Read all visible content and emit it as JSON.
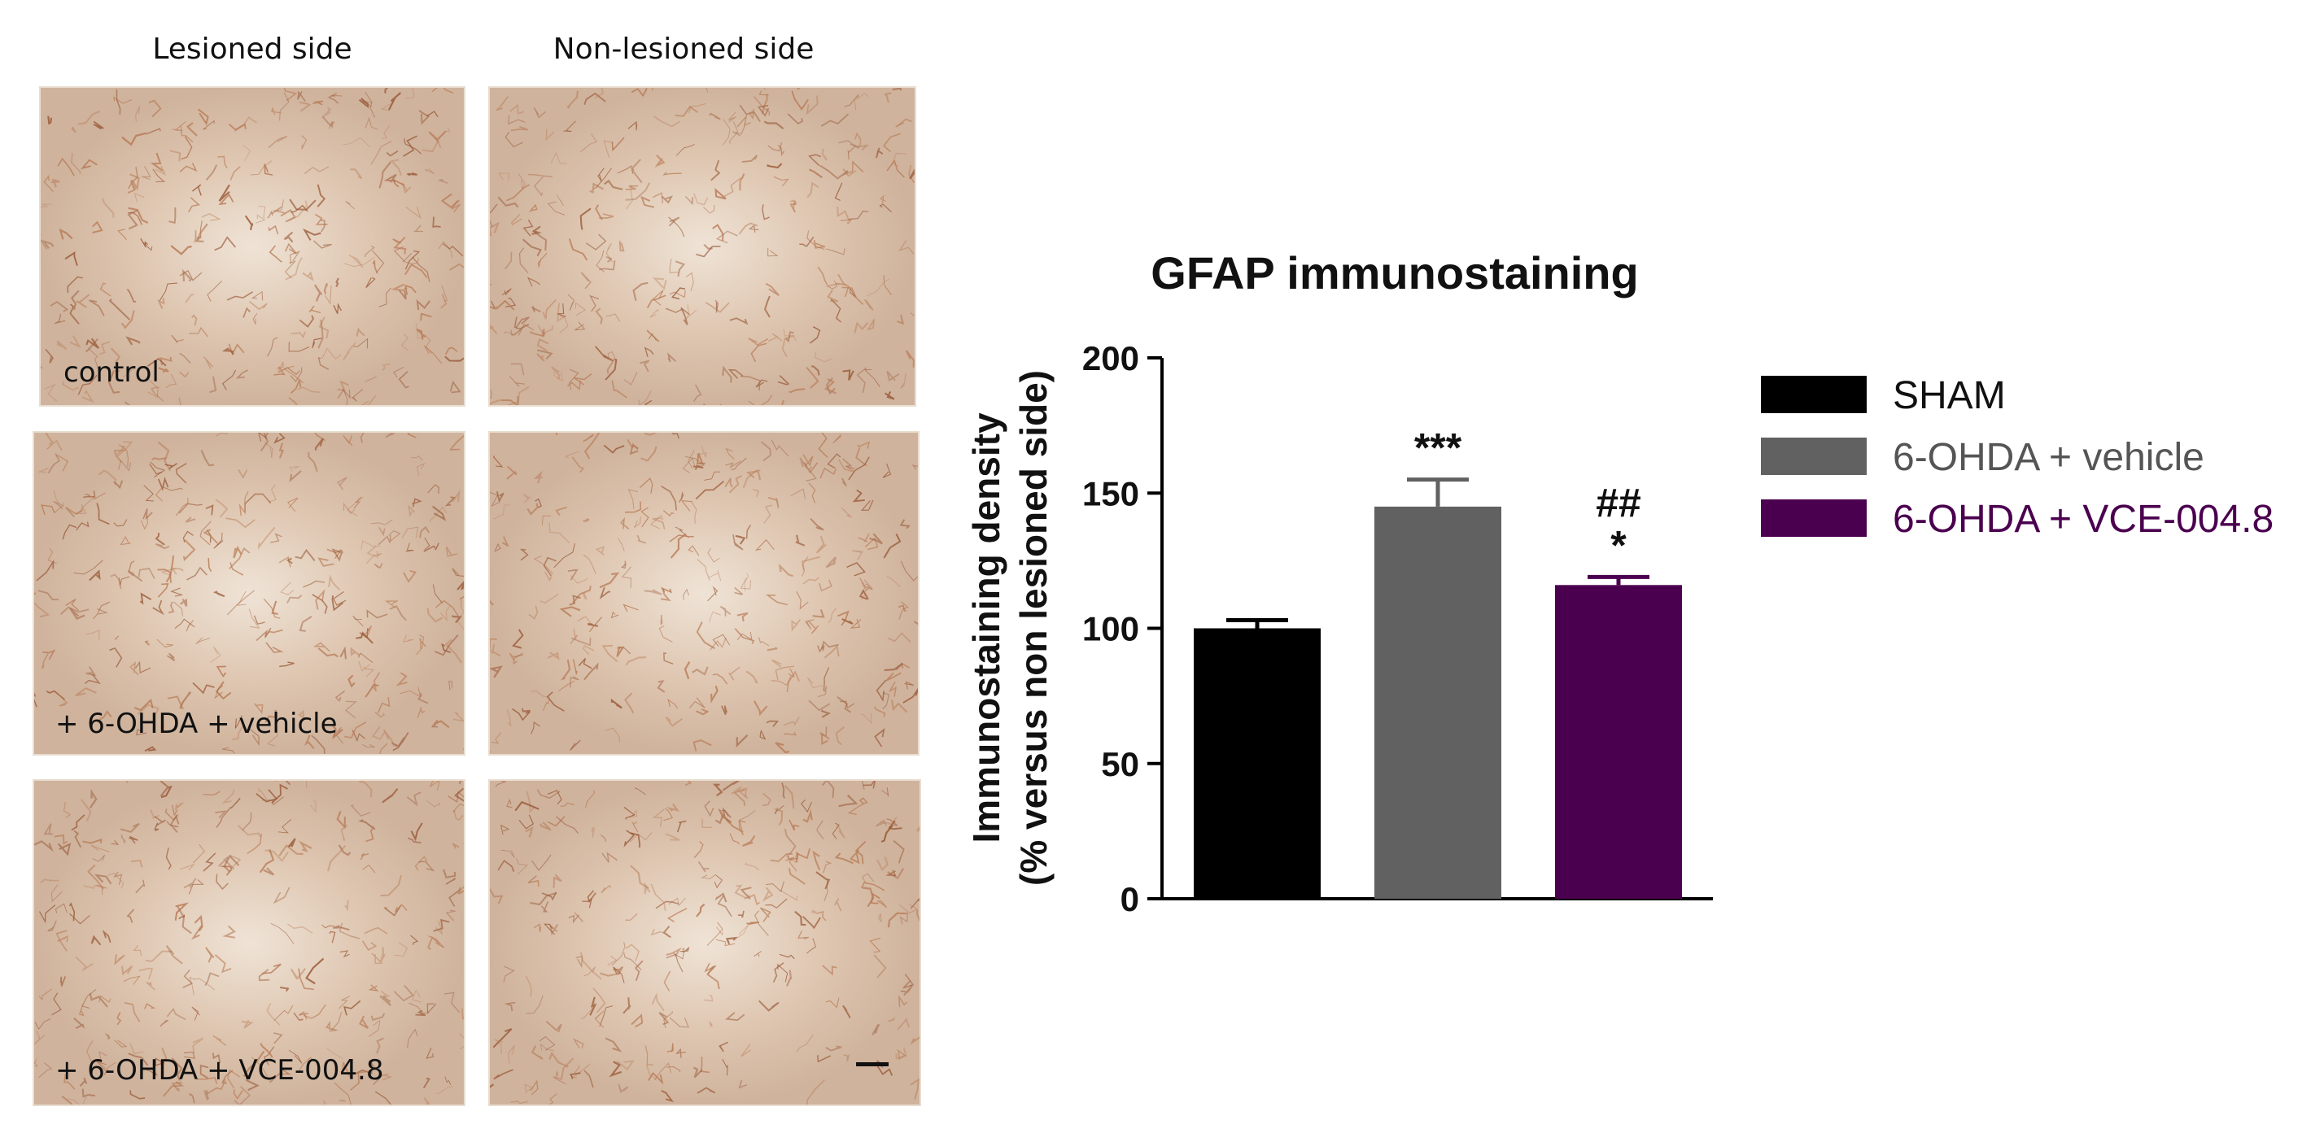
{
  "micrographs": {
    "column_headers": [
      "Lesioned side",
      "Non-lesioned side"
    ],
    "row_labels": [
      "control",
      "+ 6-OHDA + vehicle",
      "+ 6-OHDA + VCE-004.8"
    ]
  },
  "chart_data": {
    "type": "bar",
    "title": "GFAP immunostaining",
    "ylabel_line1": "Immunostaining density",
    "ylabel_line2": "(% versus non lesioned side)",
    "ylim": [
      0,
      200
    ],
    "yticks": [
      0,
      50,
      100,
      150,
      200
    ],
    "categories": [
      "SHAM",
      "6-OHDA + vehicle",
      "6-OHDA + VCE-004.8"
    ],
    "values": [
      100,
      145,
      116
    ],
    "errors": [
      3,
      10,
      3
    ],
    "colors": [
      "#000000",
      "#616161",
      "#4b004f"
    ],
    "annotations": [
      {
        "bar": 1,
        "lines": [
          "***"
        ]
      },
      {
        "bar": 2,
        "lines": [
          "##",
          "*"
        ]
      }
    ],
    "legend": {
      "position": "right",
      "entries": [
        {
          "label": "SHAM",
          "color": "#000000",
          "text_color": "#111111"
        },
        {
          "label": "6-OHDA + vehicle",
          "color": "#616161",
          "text_color": "#555555"
        },
        {
          "label": "6-OHDA + VCE-004.8",
          "color": "#4b004f",
          "text_color": "#4b004f"
        }
      ]
    }
  }
}
